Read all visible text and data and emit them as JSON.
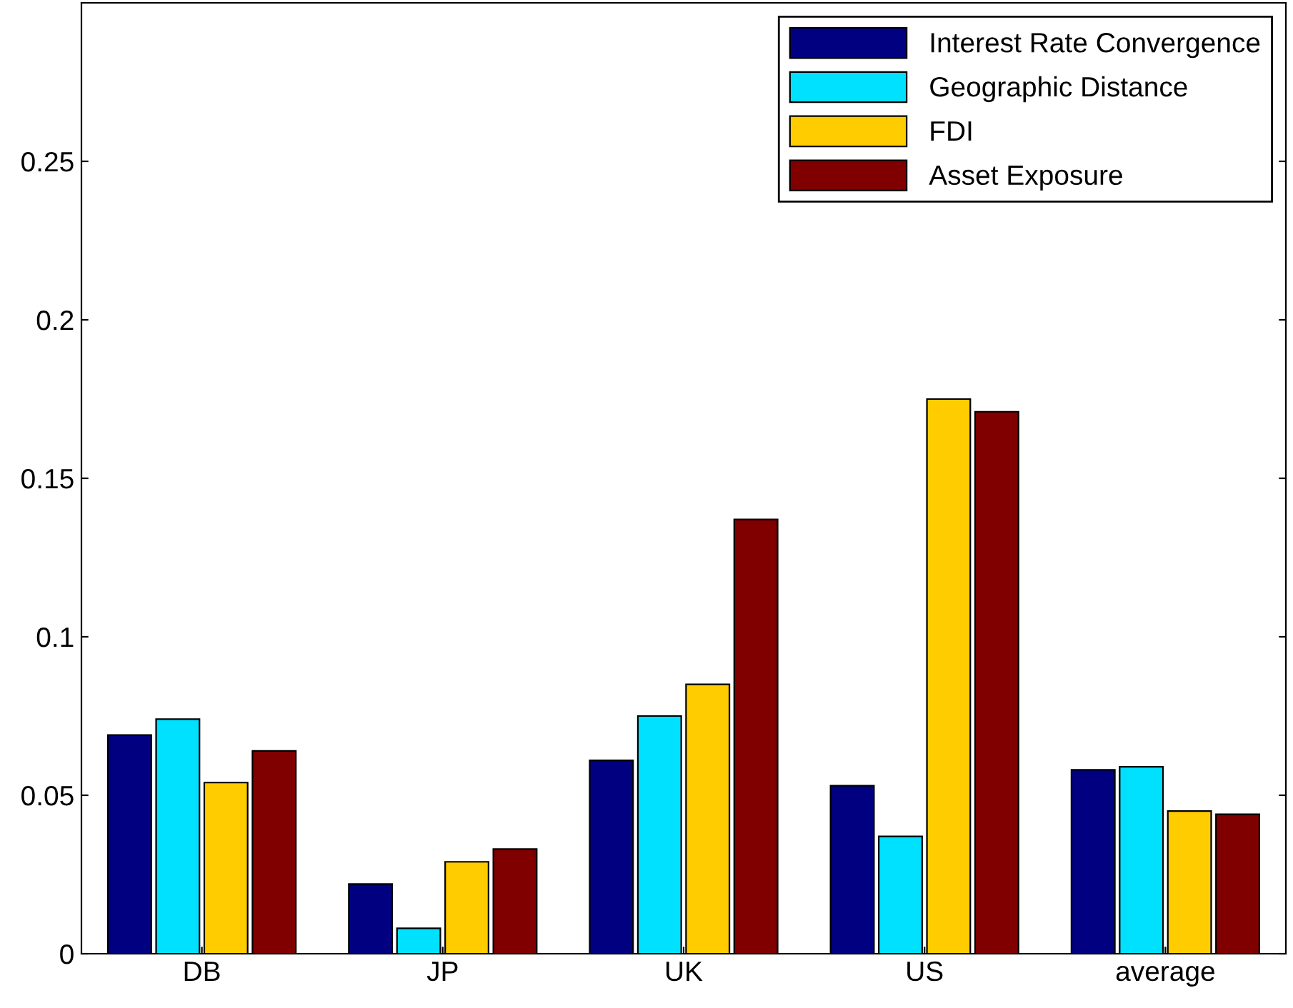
{
  "chart_data": {
    "type": "bar",
    "categories": [
      "DB",
      "JP",
      "UK",
      "US",
      "average"
    ],
    "series": [
      {
        "name": "Interest Rate Convergence",
        "color": "#000080",
        "values": [
          0.069,
          0.022,
          0.061,
          0.053,
          0.058
        ]
      },
      {
        "name": "Geographic Distance",
        "color": "#00e0ff",
        "values": [
          0.074,
          0.008,
          0.075,
          0.037,
          0.059
        ]
      },
      {
        "name": "FDI",
        "color": "#ffcc00",
        "values": [
          0.054,
          0.029,
          0.085,
          0.175,
          0.045
        ]
      },
      {
        "name": "Asset Exposure",
        "color": "#800000",
        "values": [
          0.064,
          0.033,
          0.137,
          0.171,
          0.044
        ]
      }
    ],
    "ylim": [
      0,
      0.3
    ],
    "yticks": [
      0,
      0.05,
      0.1,
      0.15,
      0.2,
      0.25
    ],
    "grid": false,
    "legend": "top right"
  }
}
